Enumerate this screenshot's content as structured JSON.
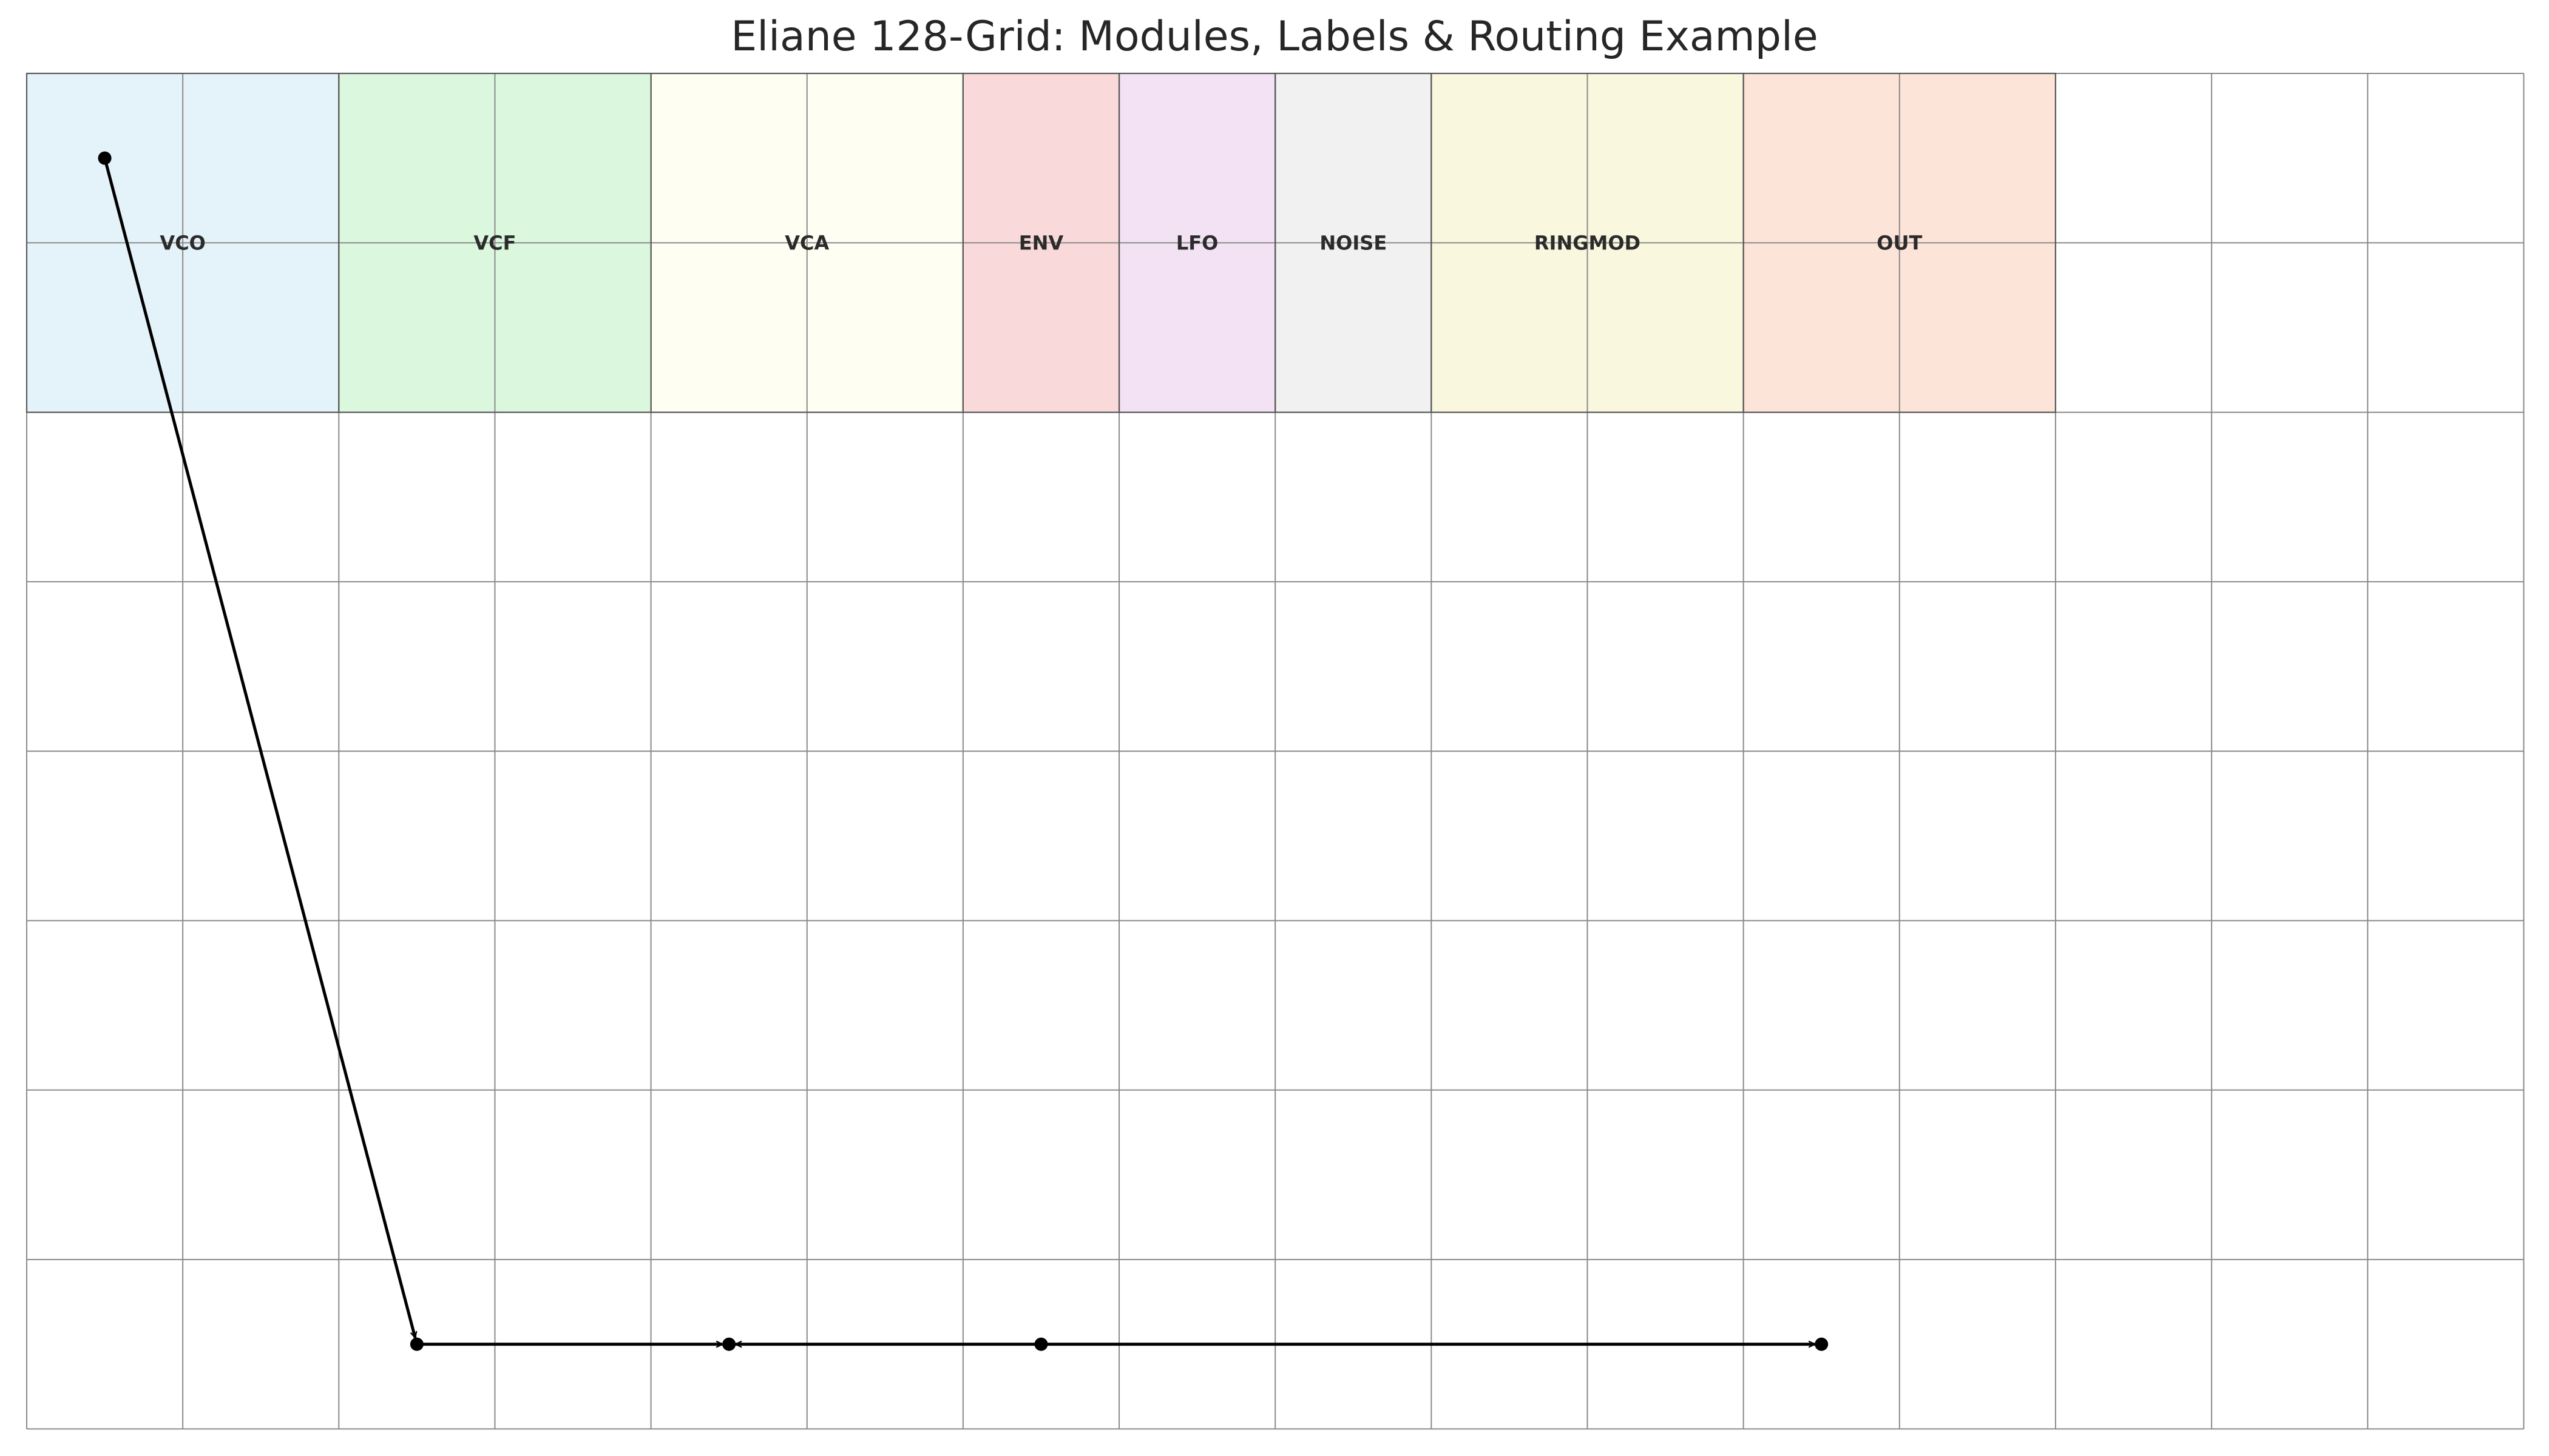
{
  "title": "Eliane 128-Grid: Modules, Labels & Routing Example",
  "grid": {
    "columns": 16,
    "rows": 8
  },
  "modules": [
    {
      "label": "VCO",
      "col_start": 0,
      "col_span": 2,
      "row_start": 0,
      "row_span": 2,
      "color": "#e4f3f9"
    },
    {
      "label": "VCF",
      "col_start": 2,
      "col_span": 2,
      "row_start": 0,
      "row_span": 2,
      "color": "#dbf8df"
    },
    {
      "label": "VCA",
      "col_start": 4,
      "col_span": 2,
      "row_start": 0,
      "row_span": 2,
      "color": "#fffef3"
    },
    {
      "label": "ENV",
      "col_start": 6,
      "col_span": 1,
      "row_start": 0,
      "row_span": 2,
      "color": "#f9d9d9"
    },
    {
      "label": "LFO",
      "col_start": 7,
      "col_span": 1,
      "row_start": 0,
      "row_span": 2,
      "color": "#f3e2f4"
    },
    {
      "label": "NOISE",
      "col_start": 8,
      "col_span": 1,
      "row_start": 0,
      "row_span": 2,
      "color": "#f1f1f1"
    },
    {
      "label": "RINGMOD",
      "col_start": 9,
      "col_span": 2,
      "row_start": 0,
      "row_span": 2,
      "color": "#f9f7de"
    },
    {
      "label": "OUT",
      "col_start": 11,
      "col_span": 2,
      "row_start": 0,
      "row_span": 2,
      "color": "#fde4d9"
    }
  ],
  "connections": [
    {
      "from": [
        0.5,
        0.5
      ],
      "to": [
        2.5,
        7.5
      ]
    },
    {
      "from": [
        2.5,
        7.5
      ],
      "to": [
        4.5,
        7.5
      ]
    },
    {
      "from": [
        6.5,
        7.5
      ],
      "to": [
        4.5,
        7.5
      ]
    },
    {
      "from": [
        6.5,
        7.5
      ],
      "to": [
        11.5,
        7.5
      ]
    }
  ],
  "colors": {
    "grid_line": "#8a8a8a",
    "module_border": "#5a5a5a",
    "cable": "#000000"
  }
}
